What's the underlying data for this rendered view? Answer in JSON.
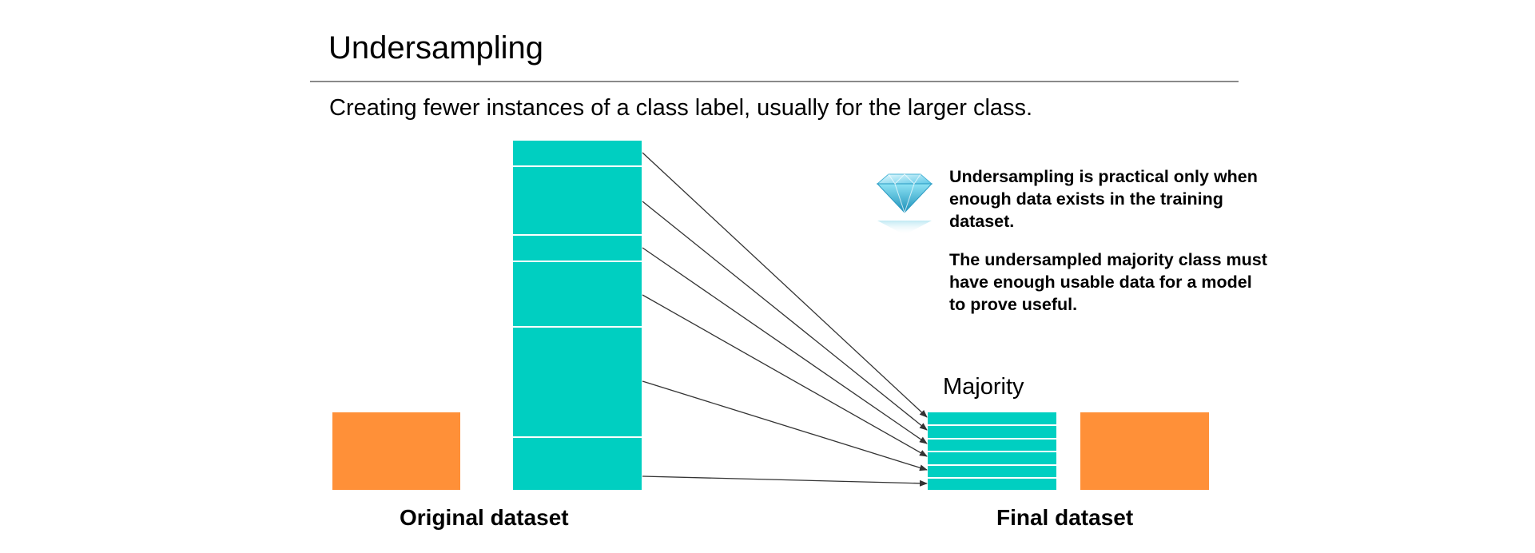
{
  "header": {
    "title": "Undersampling",
    "subtitle": "Creating fewer instances of a class label, usually for the larger class."
  },
  "notes": [
    "Undersampling is practical only when enough data exists in the training dataset.",
    "The undersampled majority class must have enough usable data for a model to prove useful."
  ],
  "labels": {
    "original": "Original dataset",
    "final": "Final dataset",
    "majority": "Majority"
  },
  "colors": {
    "majority": "#00cfc1",
    "minority": "#ff9038",
    "arrow": "#333333",
    "rule": "#8a8a8a"
  },
  "icons": {
    "tip": "diamond-icon"
  }
}
